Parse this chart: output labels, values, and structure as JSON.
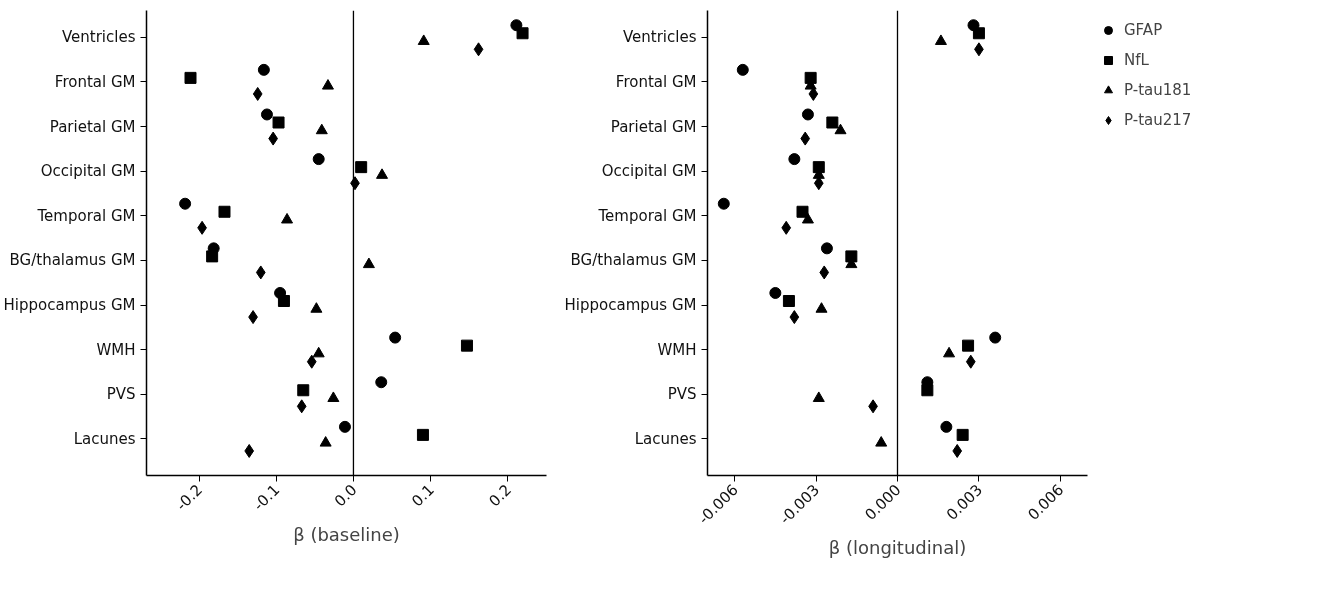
{
  "chart_data": [
    {
      "type": "scatter",
      "orientation": "horizontal",
      "xlabel": "β (baseline)",
      "categories": [
        "Ventricles",
        "Frontal GM",
        "Parietal GM",
        "Occipital GM",
        "Temporal GM",
        "BG/thalamus GM",
        "Hippocampus GM",
        "WMH",
        "PVS",
        "Lacunes"
      ],
      "xlim": [
        -0.268,
        0.25
      ],
      "xticks": [
        -0.2,
        -0.1,
        {
          "value": 0,
          "label": "0.0"
        },
        0.1,
        0.2
      ],
      "grid": false,
      "legend": false,
      "ref_lines": [
        {
          "axis": "x",
          "value": 0,
          "color": "#000000"
        }
      ],
      "series": [
        {
          "color": "#000000",
          "marker": "circle",
          "values": [
            0.211,
            -0.116,
            -0.112,
            -0.045,
            -0.218,
            -0.181,
            -0.095,
            0.054,
            0.036,
            -0.011
          ]
        },
        {
          "color": "#000000",
          "marker": "square",
          "values": [
            0.219,
            -0.211,
            -0.097,
            0.01,
            -0.167,
            -0.183,
            -0.09,
            0.147,
            -0.065,
            0.09
          ]
        },
        {
          "color": "#000000",
          "marker": "triangle",
          "values": [
            0.091,
            -0.033,
            -0.041,
            0.037,
            -0.086,
            0.02,
            -0.048,
            -0.045,
            -0.026,
            -0.036
          ]
        },
        {
          "color": "#000000",
          "marker": "diamond",
          "values": [
            0.162,
            -0.124,
            -0.104,
            0.002,
            -0.196,
            -0.12,
            -0.13,
            -0.054,
            -0.067,
            -0.135
          ]
        }
      ]
    },
    {
      "type": "scatter",
      "orientation": "horizontal",
      "xlabel": "β (longitudinal)",
      "categories": [
        "Ventricles",
        "Frontal GM",
        "Parietal GM",
        "Occipital GM",
        "Temporal GM",
        "BG/thalamus GM",
        "Hippocampus GM",
        "WMH",
        "PVS",
        "Lacunes"
      ],
      "xlim": [
        -0.007,
        0.007
      ],
      "xticks": [
        {
          "value": -0.006,
          "label": "-0.006"
        },
        {
          "value": -0.003,
          "label": "-0.003"
        },
        {
          "value": 0,
          "label": "0.000"
        },
        {
          "value": 0.003,
          "label": "0.003"
        },
        {
          "value": 0.006,
          "label": "0.006"
        }
      ],
      "grid": false,
      "legend": "top right",
      "ref_lines": [
        {
          "axis": "x",
          "value": 0,
          "color": "#000000"
        }
      ],
      "series": [
        {
          "name": "GFAP",
          "color": "#000000",
          "marker": "circle",
          "values": [
            0.0028,
            -0.0057,
            -0.0033,
            -0.0038,
            -0.0064,
            -0.0026,
            -0.0045,
            0.0036,
            0.0011,
            0.0018
          ]
        },
        {
          "name": "NfL",
          "color": "#000000",
          "marker": "square",
          "values": [
            0.003,
            -0.0032,
            -0.0024,
            -0.0029,
            -0.0035,
            -0.0017,
            -0.004,
            0.0026,
            0.0011,
            0.0024
          ]
        },
        {
          "name": "P-tau181",
          "color": "#000000",
          "marker": "triangle",
          "values": [
            0.0016,
            -0.0032,
            -0.0021,
            -0.0029,
            -0.0033,
            -0.0017,
            -0.0028,
            0.0019,
            -0.0029,
            -0.0006
          ]
        },
        {
          "name": "P-tau217",
          "color": "#000000",
          "marker": "diamond",
          "values": [
            0.003,
            -0.0031,
            -0.0034,
            -0.0029,
            -0.0041,
            -0.0027,
            -0.0038,
            0.0027,
            -0.0009,
            0.0022
          ]
        }
      ]
    }
  ]
}
